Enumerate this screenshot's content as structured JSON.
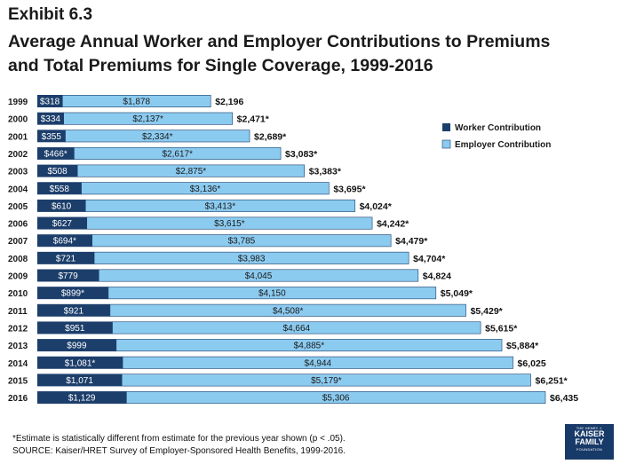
{
  "header": {
    "exhibit": "Exhibit 6.3",
    "title_line1": "Average Annual Worker and Employer Contributions to Premiums",
    "title_line2": "and Total Premiums for Single Coverage, 1999-2016"
  },
  "footer": {
    "note": "*Estimate is statistically different from estimate for the previous year shown (p < .05).",
    "source": "SOURCE:  Kaiser/HRET Survey of Employer-Sponsored Health Benefits, 1999-2016."
  },
  "logo": {
    "line0": "THE HENRY J.",
    "line1": "KAISER",
    "line2": "FAMILY",
    "line3": "FOUNDATION"
  },
  "colors": {
    "worker": "#1c3e6b",
    "employer": "#8ccbf0",
    "bar_border": "#1c3e6b"
  },
  "chart_data": {
    "type": "bar",
    "orientation": "horizontal",
    "stacked": true,
    "legend_position": "right",
    "categories": [
      "1999",
      "2000",
      "2001",
      "2002",
      "2003",
      "2004",
      "2005",
      "2006",
      "2007",
      "2008",
      "2009",
      "2010",
      "2011",
      "2012",
      "2013",
      "2014",
      "2015",
      "2016"
    ],
    "series": [
      {
        "name": "Worker Contribution",
        "values": [
          318,
          334,
          355,
          466,
          508,
          558,
          610,
          627,
          694,
          721,
          779,
          899,
          921,
          951,
          999,
          1081,
          1071,
          1129
        ],
        "labels": [
          "$318",
          "$334",
          "$355",
          "$466*",
          "$508",
          "$558",
          "$610",
          "$627",
          "$694*",
          "$721",
          "$779",
          "$899*",
          "$921",
          "$951",
          "$999",
          "$1,081*",
          "$1,071",
          "$1,129"
        ]
      },
      {
        "name": "Employer Contribution",
        "values": [
          1878,
          2137,
          2334,
          2617,
          2875,
          3136,
          3413,
          3615,
          3785,
          3983,
          4045,
          4150,
          4508,
          4664,
          4885,
          4944,
          5179,
          5306
        ],
        "labels": [
          "$1,878",
          "$2,137*",
          "$2,334*",
          "$2,617*",
          "$2,875*",
          "$3,136*",
          "$3,413*",
          "$3,615*",
          "$3,785",
          "$3,983",
          "$4,045",
          "$4,150",
          "$4,508*",
          "$4,664",
          "$4,885*",
          "$4,944",
          "$5,179*",
          "$5,306"
        ]
      }
    ],
    "totals": [
      2196,
      2471,
      2689,
      3083,
      3383,
      3695,
      4024,
      4242,
      4479,
      4704,
      4824,
      5049,
      5429,
      5615,
      5884,
      6025,
      6251,
      6435
    ],
    "total_labels": [
      "$2,196",
      "$2,471*",
      "$2,689*",
      "$3,083*",
      "$3,383*",
      "$3,695*",
      "$4,024*",
      "$4,242*",
      "$4,479*",
      "$4,704*",
      "$4,824",
      "$5,049*",
      "$5,429*",
      "$5,615*",
      "$5,884*",
      "$6,025",
      "$6,251*",
      "$6,435"
    ]
  }
}
